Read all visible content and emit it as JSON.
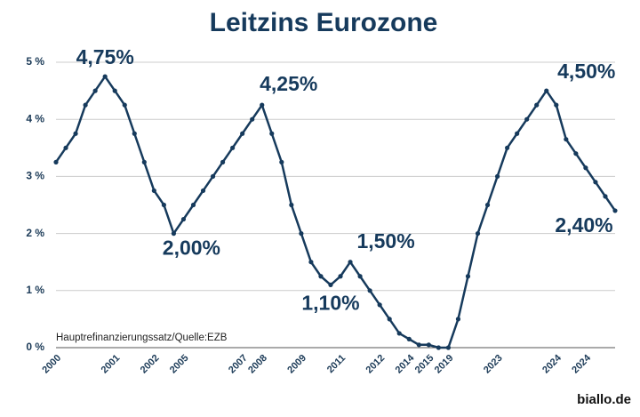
{
  "chart_data": {
    "type": "line",
    "title": "Leitzins Eurozone",
    "note": "Hauptrefinanzierungssatz/Quelle:EZB",
    "source": "biallo.de",
    "categories": [
      "2000",
      null,
      null,
      null,
      null,
      null,
      "2001",
      null,
      null,
      null,
      "2002",
      null,
      null,
      "2005",
      null,
      null,
      null,
      null,
      null,
      "2007",
      null,
      "2008",
      null,
      null,
      null,
      "2009",
      null,
      null,
      null,
      "2011",
      null,
      null,
      null,
      "2012",
      null,
      null,
      "2014",
      null,
      "2015",
      null,
      "2019",
      null,
      null,
      null,
      null,
      "2023",
      null,
      null,
      null,
      null,
      null,
      "2024",
      null,
      null,
      "2024",
      null,
      null,
      null
    ],
    "series": [
      {
        "name": "Leitzins",
        "color": "#163a5c",
        "values": [
          3.25,
          3.5,
          3.75,
          4.25,
          4.5,
          4.75,
          4.5,
          4.25,
          3.75,
          3.25,
          2.75,
          2.5,
          2.0,
          2.25,
          2.5,
          2.75,
          3.0,
          3.25,
          3.5,
          3.75,
          4.0,
          4.25,
          3.75,
          3.25,
          2.5,
          2.0,
          1.5,
          1.25,
          1.1,
          1.25,
          1.5,
          1.25,
          1.0,
          0.75,
          0.5,
          0.25,
          0.15,
          0.05,
          0.05,
          0.0,
          0.0,
          0.5,
          1.25,
          2.0,
          2.5,
          3.0,
          3.5,
          3.75,
          4.0,
          4.25,
          4.5,
          4.25,
          3.65,
          3.4,
          3.15,
          2.9,
          2.65,
          2.4
        ],
        "value_labels": [
          null,
          null,
          null,
          null,
          null,
          "4,75%",
          null,
          null,
          null,
          null,
          null,
          null,
          "2,00%",
          null,
          null,
          null,
          null,
          null,
          null,
          null,
          null,
          "4,25%",
          null,
          null,
          null,
          null,
          null,
          null,
          "1,10%",
          null,
          "1,50%",
          null,
          null,
          null,
          null,
          null,
          null,
          null,
          null,
          null,
          null,
          null,
          null,
          null,
          null,
          null,
          null,
          null,
          null,
          null,
          "4,50%",
          null,
          null,
          null,
          null,
          null,
          null,
          "2,40%"
        ]
      }
    ],
    "ylim": [
      0,
      5
    ],
    "yticks": [
      {
        "value": 0,
        "label": "0 %"
      },
      {
        "value": 1,
        "label": "1 %"
      },
      {
        "value": 2,
        "label": "2 %"
      },
      {
        "value": 3,
        "label": "3 %"
      },
      {
        "value": 4,
        "label": "4 %"
      },
      {
        "value": 5,
        "label": "5 %"
      }
    ],
    "grid": true
  }
}
